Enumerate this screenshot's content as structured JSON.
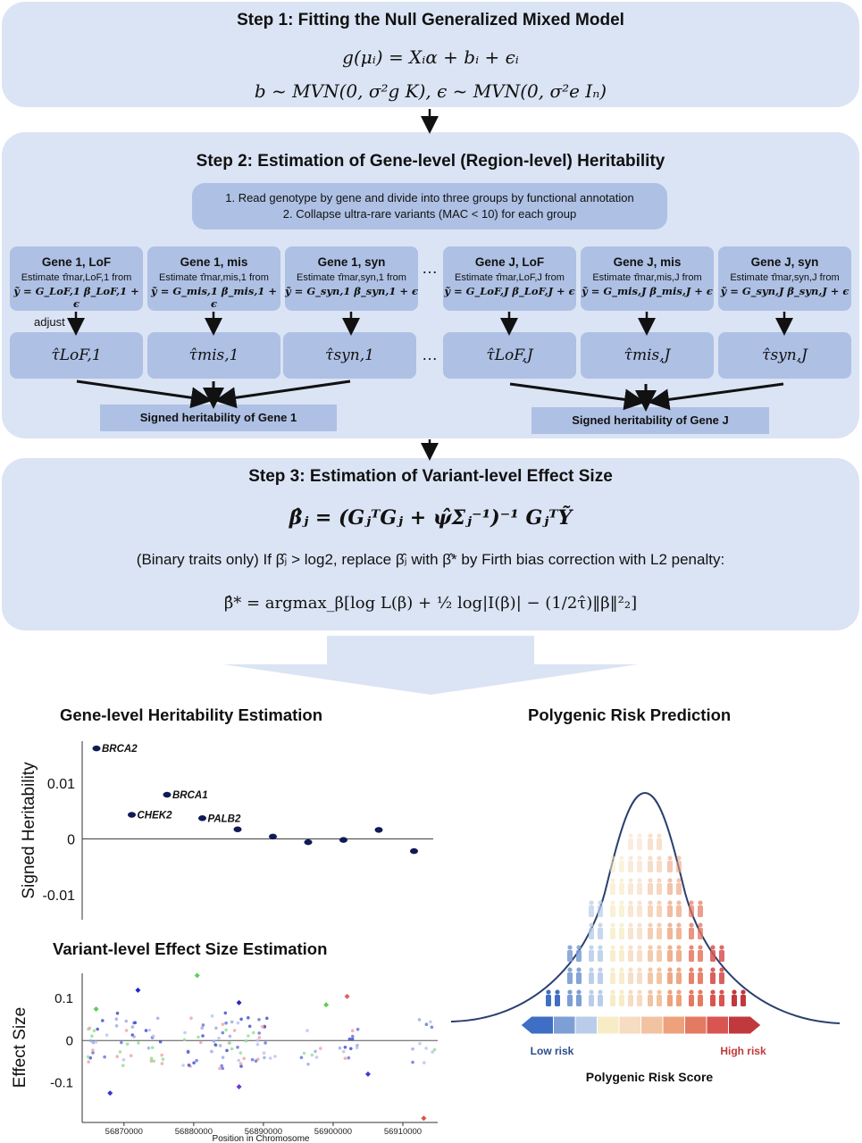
{
  "step1": {
    "title": "Step 1: Fitting the Null Generalized Mixed Model",
    "eq1": "g(μᵢ) = Xᵢα + bᵢ + ϵᵢ",
    "eq2": "b ~ MVN(0, σ²g K),  ϵ ~ MVN(0, σ²e Iₙ)"
  },
  "step2": {
    "title": "Step 2: Estimation of Gene-level (Region-level) Heritability",
    "note1": "1. Read genotype by gene and divide into three groups by functional annotation",
    "note2": "2. Collapse ultra-rare variants (MAC < 10) for each group",
    "genes": [
      {
        "title": "Gene 1, LoF",
        "line": "Estimate τ̂mar,LoF,1 from",
        "eq": "ỹ = G_LoF,1 β_LoF,1 + ϵ",
        "tau": "τ̂LoF,1"
      },
      {
        "title": "Gene 1, mis",
        "line": "Estimate τ̂mar,mis,1 from",
        "eq": "ỹ = G_mis,1 β_mis,1 + ϵ",
        "tau": "τ̂mis,1"
      },
      {
        "title": "Gene 1, syn",
        "line": "Estimate τ̂mar,syn,1 from",
        "eq": "ỹ = G_syn,1 β_syn,1 + ϵ",
        "tau": "τ̂syn,1"
      },
      {
        "title": "Gene J, LoF",
        "line": "Estimate τ̂mar,LoF,J from",
        "eq": "ỹ = G_LoF,J β_LoF,J + ϵ",
        "tau": "τ̂LoF,J"
      },
      {
        "title": "Gene J, mis",
        "line": "Estimate τ̂mar,mis,J from",
        "eq": "ỹ = G_mis,J β_mis,J + ϵ",
        "tau": "τ̂mis,J"
      },
      {
        "title": "Gene J, syn",
        "line": "Estimate τ̂mar,syn,J from",
        "eq": "ỹ = G_syn,J β_syn,J + ϵ",
        "tau": "τ̂syn,J"
      }
    ],
    "ellipsis": "…",
    "adjust": "adjust",
    "signed1": "Signed heritability of Gene 1",
    "signedJ": "Signed heritability of Gene J"
  },
  "step3": {
    "title": "Step 3: Estimation of Variant-level Effect Size",
    "eq1": "β̂ⱼ = (GⱼᵀGⱼ + ψ̂Σⱼ⁻¹)⁻¹ GⱼᵀỸ",
    "note": "(Binary traits only) If β̂ⱼ > log2, replace β̂ⱼ with β̂* by Firth bias correction with L2 penalty:",
    "eq2": "β̂* = argmax_β[log L(β) + ½ log|I(β)| − (1/2τ̂)‖β‖²₂]"
  },
  "heritability_title": "Gene-level Heritability Estimation",
  "effect_title": "Variant-level Effect Size Estimation",
  "prs_title": "Polygenic Risk Prediction",
  "prs": {
    "low": "Low risk",
    "high": "High risk",
    "score_label": "Polygenic Risk Score",
    "colors": [
      "#3f6fc4",
      "#7d9fd6",
      "#b9cdea",
      "#f7ecc6",
      "#f6dcc3",
      "#f2c3a0",
      "#eea27c",
      "#e57a62",
      "#d85552",
      "#c0393c"
    ]
  },
  "chart_data": [
    {
      "type": "scatter",
      "ylabel": "Signed Heritability",
      "yticks": [
        "0.01",
        "0",
        "-0.01"
      ],
      "ylim": [
        -0.0145,
        0.0175
      ],
      "x": [
        1,
        2,
        3,
        4,
        5,
        6,
        7,
        8,
        9,
        10
      ],
      "y": [
        0.0162,
        0.0043,
        0.0079,
        0.0037,
        0.0017,
        0.0004,
        -0.0006,
        -0.0002,
        0.0016,
        -0.0022
      ],
      "point_labels": [
        "BRCA2",
        "CHEK2",
        "BRCA1",
        "PALB2",
        "",
        "",
        "",
        "",
        "",
        ""
      ],
      "color": "#101a55"
    },
    {
      "type": "scatter",
      "ylabel": "Effect Size",
      "xlabel": "Position in Chromosome",
      "xticks": [
        "56870000",
        "56880000",
        "56890000",
        "56900000",
        "56910000"
      ],
      "yticks": [
        "0.1",
        "0",
        "-0.1"
      ],
      "xlim": [
        56864000,
        56915000
      ],
      "ylim": [
        -0.195,
        0.16
      ],
      "highlighted_points": [
        {
          "x": 56868000,
          "y": -0.125,
          "color": "#3636c8"
        },
        {
          "x": 56872000,
          "y": 0.12,
          "color": "#1a2ad0"
        },
        {
          "x": 56880500,
          "y": 0.155,
          "color": "#5ad05a"
        },
        {
          "x": 56886500,
          "y": 0.09,
          "color": "#2a2ab8"
        },
        {
          "x": 56886500,
          "y": -0.11,
          "color": "#6a3ad0"
        },
        {
          "x": 56902000,
          "y": 0.105,
          "color": "#e06060"
        },
        {
          "x": 56905000,
          "y": -0.08,
          "color": "#3a3ad0"
        },
        {
          "x": 56913000,
          "y": -0.185,
          "color": "#e05050"
        },
        {
          "x": 56899000,
          "y": 0.085,
          "color": "#5ad05a"
        },
        {
          "x": 56866000,
          "y": 0.075,
          "color": "#5ad05a"
        }
      ]
    }
  ]
}
